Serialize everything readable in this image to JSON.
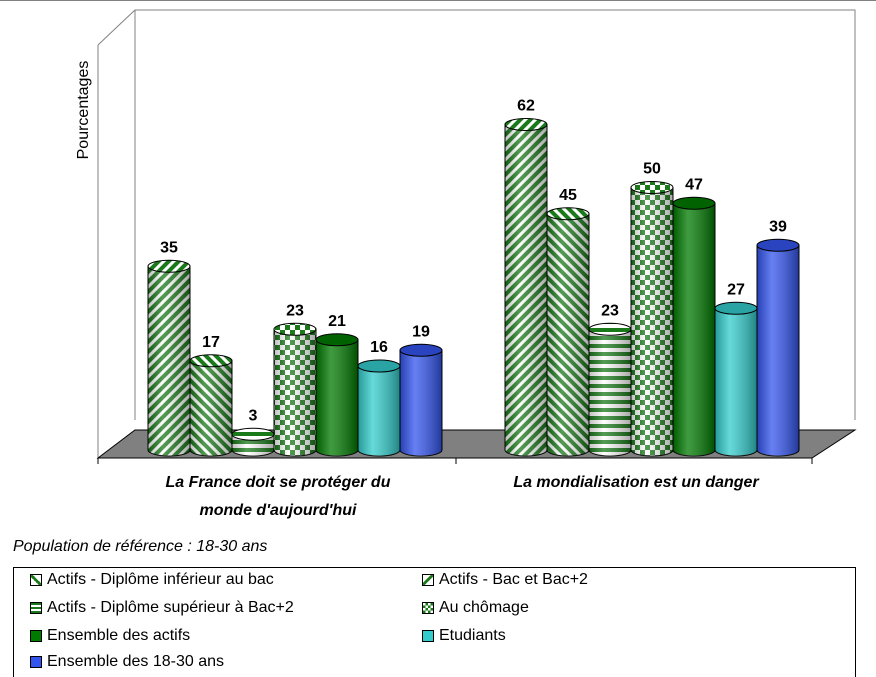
{
  "chart_data": {
    "type": "bar",
    "ylabel": "Pourcentages",
    "ylim": [
      0,
      70
    ],
    "categories": [
      "La France doit se protéger du monde d'aujourd'hui",
      "La mondialisation est un danger"
    ],
    "series": [
      {
        "name": "Actifs - Diplôme inférieur au bac",
        "values": [
          35,
          62
        ],
        "color": "#1a7a1a",
        "pattern": "diag-up"
      },
      {
        "name": "Actifs - Bac et Bac+2",
        "values": [
          17,
          45
        ],
        "color": "#1a7a1a",
        "pattern": "diag-down"
      },
      {
        "name": "Actifs - Diplôme supérieur à Bac+2",
        "values": [
          3,
          23
        ],
        "color": "#1a7a1a",
        "pattern": "horiz"
      },
      {
        "name": "Au chômage",
        "values": [
          23,
          50
        ],
        "color": "#1a7a1a",
        "pattern": "checker"
      },
      {
        "name": "Ensemble des actifs",
        "values": [
          21,
          47
        ],
        "color": "#007a00",
        "pattern": "solid"
      },
      {
        "name": "Etudiants",
        "values": [
          16,
          27
        ],
        "color": "#33cccc",
        "pattern": "solid"
      },
      {
        "name": "Ensemble des 18-30 ans",
        "values": [
          19,
          39
        ],
        "color": "#3355ee",
        "pattern": "solid"
      }
    ],
    "legend_position": "bottom",
    "grid": false
  },
  "note": "Population de référence : 18-30 ans"
}
